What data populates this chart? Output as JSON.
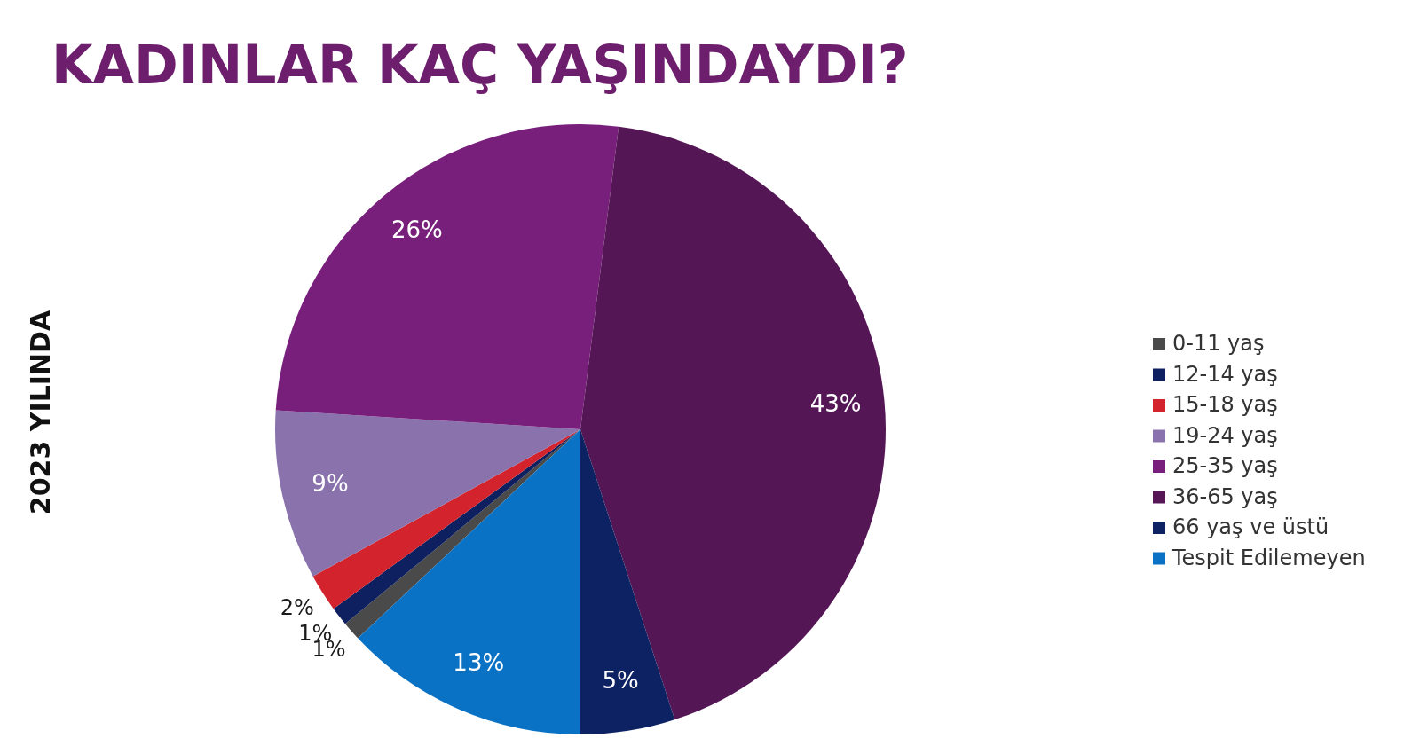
{
  "chart_data": {
    "type": "pie",
    "title": "KADINLAR KAÇ YAŞINDAYDI?",
    "subtitle": "2023 YILINDA",
    "categories": [
      "0-11 yaş",
      "12-14 yaş",
      "15-18 yaş",
      "19-24 yaş",
      "25-35 yaş",
      "36-65 yaş",
      "66 yaş ve üstü",
      "Tespit Edilemeyen"
    ],
    "values": [
      1,
      1,
      2,
      9,
      26,
      43,
      5,
      13
    ],
    "value_labels": [
      "1%",
      "1%",
      "2%",
      "9%",
      "26%",
      "43%",
      "5%",
      "13%"
    ],
    "colors": [
      "#4a4a4a",
      "#0f2060",
      "#d3232c",
      "#8a72ac",
      "#781f7c",
      "#551656",
      "#0d2262",
      "#0a72c4"
    ],
    "legend": "right"
  }
}
